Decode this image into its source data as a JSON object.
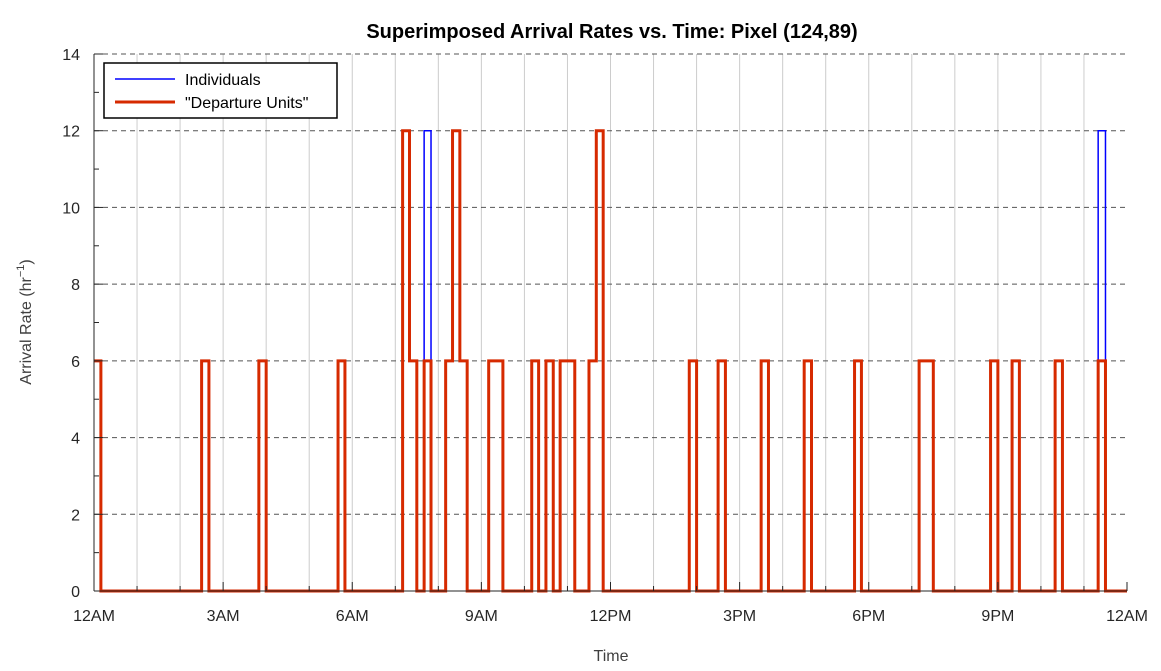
{
  "chart_data": {
    "type": "line",
    "title": "Superimposed Arrival Rates vs. Time: Pixel (124,89)",
    "xlabel": "Time",
    "ylabel_main": "Arrival Rate (hr",
    "ylabel_sup": "−1",
    "ylabel_close": ")",
    "xlim": [
      0,
      24
    ],
    "ylim": [
      0,
      14
    ],
    "x_ticks": [
      0,
      3,
      6,
      9,
      12,
      15,
      18,
      21,
      24
    ],
    "x_tick_labels": [
      "12AM",
      "3AM",
      "6AM",
      "9AM",
      "12PM",
      "3PM",
      "6PM",
      "9PM",
      "12AM"
    ],
    "y_ticks": [
      0,
      2,
      4,
      6,
      8,
      10,
      12,
      14
    ],
    "y_tick_labels": [
      "0",
      "2",
      "4",
      "6",
      "8",
      "10",
      "12",
      "14"
    ],
    "x_minor_step": 1,
    "grid": true,
    "legend_position": "top-left",
    "series": [
      {
        "name": "Individuals",
        "color": "#0000ff",
        "step_x": [
          0,
          0.16,
          2.5,
          2.67,
          3.83,
          4.0,
          5.67,
          5.83,
          7.17,
          7.33,
          7.5,
          7.67,
          7.83,
          8.17,
          8.33,
          8.5,
          8.67,
          9.17,
          9.5,
          10.17,
          10.33,
          10.5,
          10.67,
          10.83,
          11.17,
          11.5,
          11.67,
          11.83,
          13.83,
          14.0,
          14.5,
          14.67,
          15.5,
          15.67,
          16.5,
          16.67,
          17.67,
          17.83,
          19.17,
          19.5,
          20.83,
          21.0,
          21.33,
          21.5,
          22.33,
          22.5,
          23.33,
          23.5,
          24
        ],
        "step_y": [
          6,
          0,
          6,
          0,
          6,
          0,
          6,
          0,
          12,
          6,
          0,
          12,
          0,
          6,
          12,
          6,
          0,
          6,
          0,
          6,
          0,
          6,
          0,
          6,
          0,
          6,
          12,
          0,
          6,
          0,
          6,
          0,
          6,
          0,
          6,
          0,
          6,
          0,
          6,
          0,
          6,
          0,
          6,
          0,
          6,
          0,
          12,
          0,
          0
        ]
      },
      {
        "name": "\"Departure Units\"",
        "color": "#d62a00",
        "step_x": [
          0,
          0.16,
          2.5,
          2.67,
          3.83,
          4.0,
          5.67,
          5.83,
          7.17,
          7.33,
          7.5,
          7.67,
          7.83,
          8.17,
          8.33,
          8.5,
          8.67,
          9.17,
          9.5,
          10.17,
          10.33,
          10.5,
          10.67,
          10.83,
          11.17,
          11.5,
          11.67,
          11.83,
          13.83,
          14.0,
          14.5,
          14.67,
          15.5,
          15.67,
          16.5,
          16.67,
          17.67,
          17.83,
          19.17,
          19.5,
          20.83,
          21.0,
          21.33,
          21.5,
          22.33,
          22.5,
          23.33,
          23.5,
          24
        ],
        "step_y": [
          6,
          0,
          6,
          0,
          6,
          0,
          6,
          0,
          12,
          6,
          0,
          6,
          0,
          6,
          12,
          6,
          0,
          6,
          0,
          6,
          0,
          6,
          0,
          6,
          0,
          6,
          12,
          0,
          6,
          0,
          6,
          0,
          6,
          0,
          6,
          0,
          6,
          0,
          6,
          0,
          6,
          0,
          6,
          0,
          6,
          0,
          6,
          0,
          0
        ]
      }
    ]
  }
}
